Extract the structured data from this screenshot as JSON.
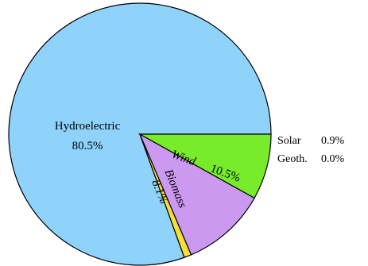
{
  "chart_data": {
    "type": "pie",
    "title": "",
    "slices": [
      {
        "label": "Hydroelectric",
        "value": 80.5,
        "value_label": "80.5%",
        "color": "#8fd3fb"
      },
      {
        "label": "Solar",
        "value": 0.9,
        "value_label": "0.9%",
        "color": "#f5e03a"
      },
      {
        "label": "Geoth.",
        "value": 0.0,
        "value_label": "0.0%",
        "color": "#ff8c00"
      },
      {
        "label": "Wind",
        "value": 10.5,
        "value_label": "10.5%",
        "color": "#cc99f0"
      },
      {
        "label": "Biomass",
        "value": 8.1,
        "value_label": "8.1%",
        "color": "#78ec2a"
      }
    ],
    "legend": "none",
    "labels": "on-slice and outside right"
  }
}
